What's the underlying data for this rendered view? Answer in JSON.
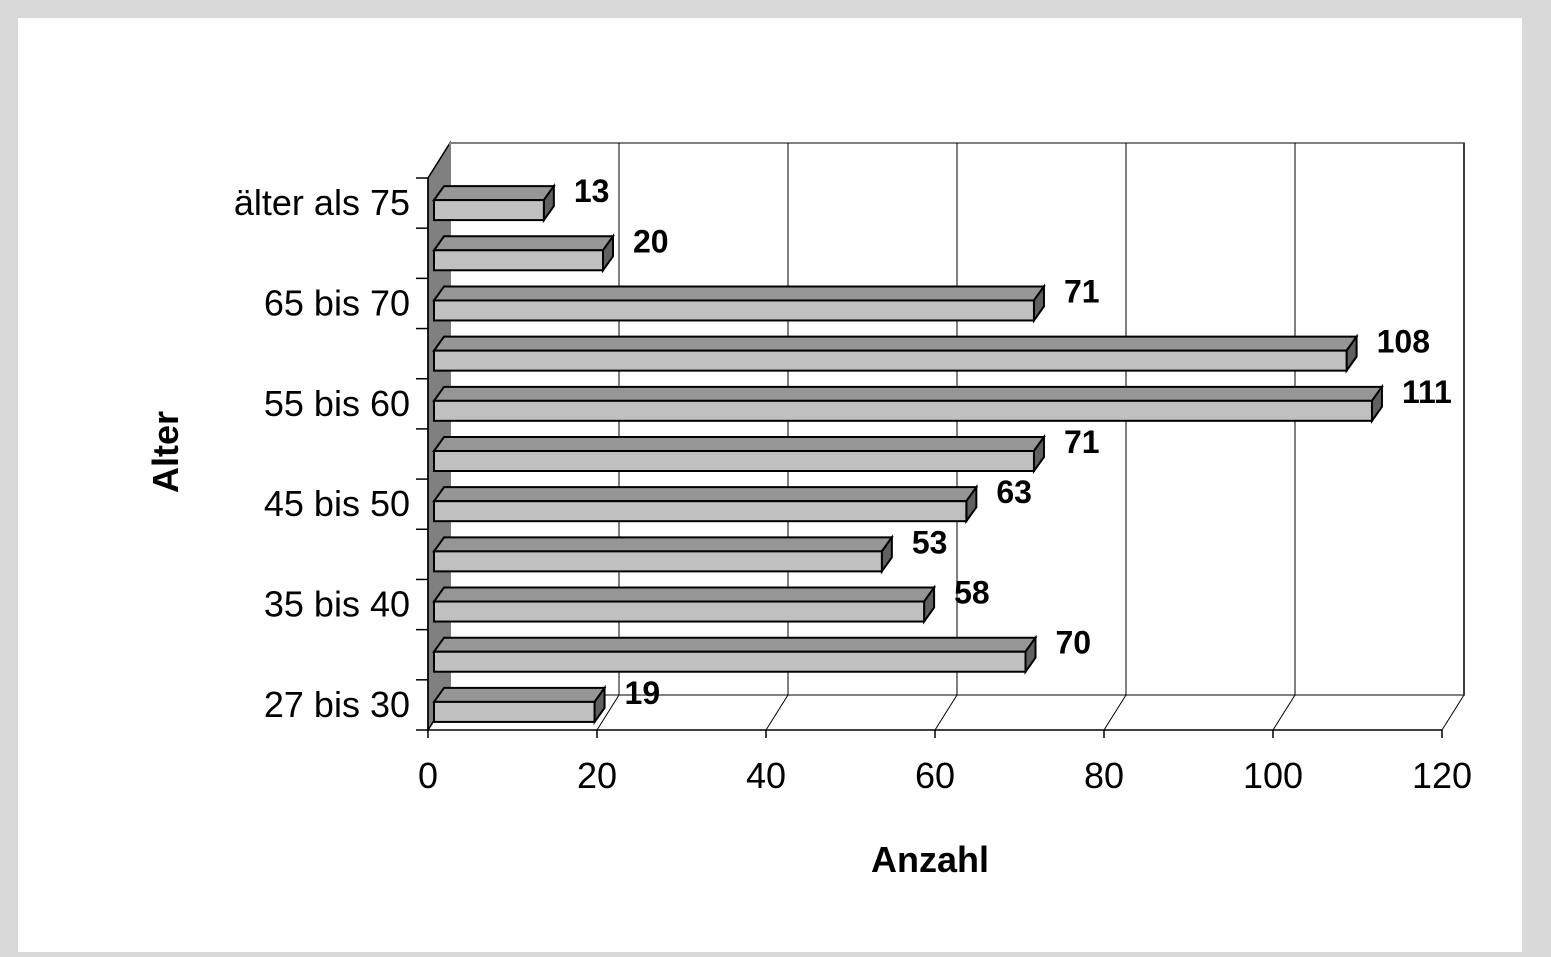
{
  "chart_data": {
    "type": "bar",
    "orientation": "horizontal",
    "three_d": true,
    "categories": [
      "27 bis 30",
      "",
      "35 bis 40",
      "",
      "45 bis 50",
      "",
      "55 bis 60",
      "",
      "65 bis 70",
      "",
      "älter als 75"
    ],
    "values": [
      19,
      70,
      58,
      53,
      63,
      71,
      111,
      108,
      71,
      20,
      13
    ],
    "xlabel": "Anzahl",
    "ylabel": "Alter",
    "xlim": [
      0,
      120
    ],
    "xticks": [
      0,
      20,
      40,
      60,
      80,
      100,
      120
    ],
    "grid": "vertical",
    "legend": "none",
    "colors": {
      "bar_front": "#c0c0c0",
      "bar_top": "#969696",
      "bar_side": "#606060",
      "wall_side": "#808080",
      "plot_bg": "#ffffff",
      "frame_bg": "#d9d9d9"
    }
  }
}
